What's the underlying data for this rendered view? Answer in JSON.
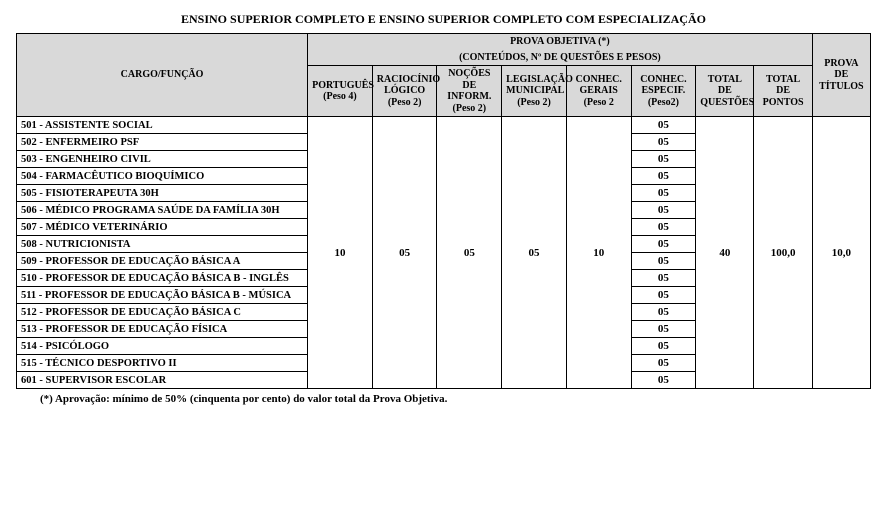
{
  "title": "ENSINO SUPERIOR COMPLETO E ENSINO SUPERIOR COMPLETO COM ESPECIALIZAÇÃO",
  "headers": {
    "cargo": "CARGO/FUNÇÃO",
    "prova_objetiva": "PROVA OBJETIVA (*)",
    "prova_sub": "(CONTEÚDOS, Nº DE QUESTÕES E PESOS)",
    "prova_titulos": "PROVA DE TÍTULOS",
    "cols": {
      "portugues": "PORTUGUÊS (Peso 4)",
      "raciocinio": "RACIOCÍNIO LÓGICO (Peso 2)",
      "nocoes": "NOÇÕES DE INFORM. (Peso 2)",
      "legislacao": "LEGISLAÇÃO MUNICIPAL (Peso 2)",
      "conhec_gerais": "CONHEC. GERAIS (Peso 2",
      "conhec_especif": "CONHEC. ESPECIF. (Peso2)",
      "total_questoes": "TOTAL DE QUESTÕES",
      "total_pontos": "TOTAL DE PONTOS"
    }
  },
  "merged": {
    "portugues": "10",
    "raciocinio": "05",
    "nocoes": "05",
    "legislacao": "05",
    "conhec_gerais": "10",
    "total_questoes": "40",
    "total_pontos": "100,0",
    "prova_titulos": "10,0"
  },
  "cargos": [
    "501 - ASSISTENTE SOCIAL",
    "502 - ENFERMEIRO PSF",
    "503 - ENGENHEIRO CIVIL",
    "504 - FARMACÊUTICO BIOQUÍMICO",
    "505 - FISIOTERAPEUTA 30H",
    "506 - MÉDICO PROGRAMA SAÚDE DA FAMÍLIA 30H",
    "507 - MÉDICO VETERINÁRIO",
    "508 - NUTRICIONISTA",
    "509 - PROFESSOR DE EDUCAÇÃO BÁSICA A",
    "510 - PROFESSOR DE EDUCAÇÃO BÁSICA B - INGLÊS",
    "511 - PROFESSOR DE EDUCAÇÃO BÁSICA B - MÚSICA",
    "512 - PROFESSOR DE EDUCAÇÃO BÁSICA C",
    "513 - PROFESSOR DE EDUCAÇÃO FÍSICA",
    "514 - PSICÓLOGO",
    "515 - TÉCNICO DESPORTIVO II",
    "601 - SUPERVISOR ESCOLAR"
  ],
  "especif_value": "05",
  "footnote": "(*) Aprovação: mínimo de 50% (cinquenta por cento) do valor total da Prova Objetiva.",
  "style": {
    "header_bg": "#d9d9d9",
    "border": "#000000",
    "text": "#000000",
    "page_bg": "#ffffff",
    "title_fontsize": 12,
    "header_fontsize": 10,
    "body_fontsize": 11
  }
}
